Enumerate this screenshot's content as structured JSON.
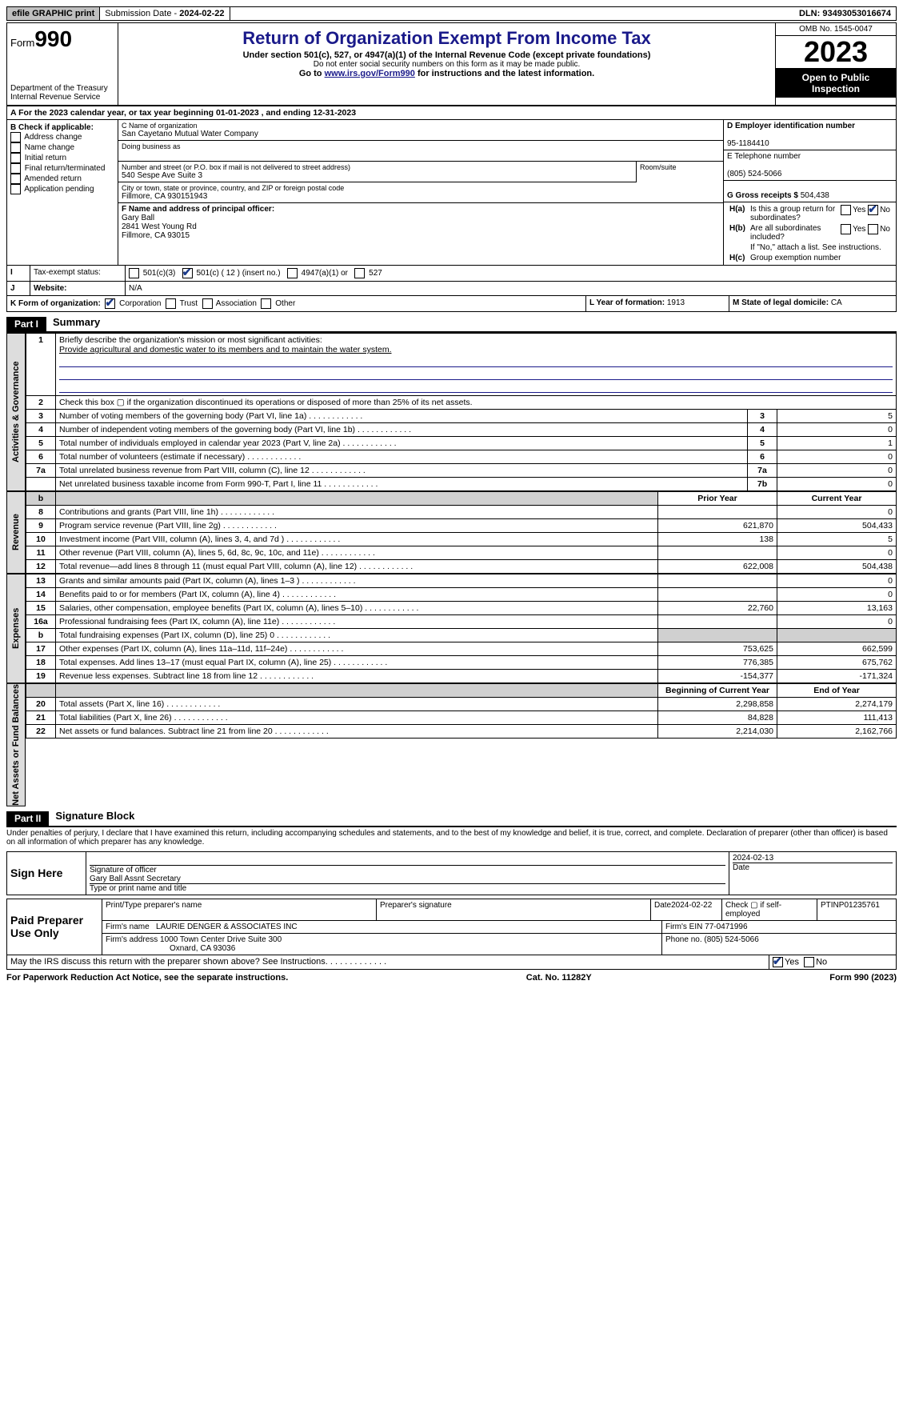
{
  "topbar": {
    "efile": "efile GRAPHIC print",
    "submission_label": "Submission Date - ",
    "submission_date": "2024-02-22",
    "dln_label": "DLN: ",
    "dln": "93493053016674"
  },
  "header": {
    "form_prefix": "Form",
    "form_number": "990",
    "dept": "Department of the Treasury\nInternal Revenue Service",
    "title": "Return of Organization Exempt From Income Tax",
    "line1": "Under section 501(c), 527, or 4947(a)(1) of the Internal Revenue Code (except private foundations)",
    "line2": "Do not enter social security numbers on this form as it may be made public.",
    "line3_pre": "Go to ",
    "line3_link": "www.irs.gov/Form990",
    "line3_post": " for instructions and the latest information.",
    "omb": "OMB No. 1545-0047",
    "year": "2023",
    "inspect": "Open to Public Inspection"
  },
  "sectionA": {
    "text_pre": "A For the 2023 calendar year, or tax year beginning ",
    "begin": "01-01-2023",
    "mid": "  , and ending ",
    "end": "12-31-2023"
  },
  "boxB": {
    "title": "B Check if applicable:",
    "items": [
      "Address change",
      "Name change",
      "Initial return",
      "Final return/terminated",
      "Amended return",
      "Application pending"
    ]
  },
  "boxC": {
    "name_label": "C Name of organization",
    "name": "San Cayetano Mutual Water Company",
    "dba_label": "Doing business as",
    "dba": "",
    "street_label": "Number and street (or P.O. box if mail is not delivered to street address)",
    "street": "540 Sespe Ave Suite 3",
    "room_label": "Room/suite",
    "city_label": "City or town, state or province, country, and ZIP or foreign postal code",
    "city": "Fillmore, CA  930151943",
    "officer_label": "F  Name and address of principal officer:",
    "officer_name": "Gary Ball",
    "officer_addr1": "2841 West Young Rd",
    "officer_addr2": "Fillmore, CA  93015"
  },
  "boxD": {
    "label": "D Employer identification number",
    "value": "95-1184410"
  },
  "boxE": {
    "label": "E Telephone number",
    "value": "(805) 524-5066"
  },
  "boxG": {
    "label": "G Gross receipts $ ",
    "value": "504,438"
  },
  "boxH": {
    "a": "Is this a group return for subordinates?",
    "a_yes": "Yes",
    "a_no": "No",
    "b": "Are all subordinates included?",
    "c_pre": "If \"No,\" attach a list. See instructions.",
    "c": "Group exemption number"
  },
  "rowI": {
    "label": "Tax-exempt status:",
    "opt1": "501(c)(3)",
    "opt2": "501(c) ( 12 ) (insert no.)",
    "opt3": "4947(a)(1) or",
    "opt4": "527"
  },
  "rowJ": {
    "label": "Website:",
    "value": "N/A"
  },
  "rowK": {
    "label": "K Form of organization:",
    "opts": [
      "Corporation",
      "Trust",
      "Association",
      "Other"
    ],
    "L": "L Year of formation: ",
    "L_val": "1913",
    "M": "M State of legal domicile: ",
    "M_val": "CA"
  },
  "part1": {
    "tag": "Part I",
    "title": "Summary"
  },
  "summary": {
    "q1": "Briefly describe the organization's mission or most significant activities:",
    "mission": "Provide agricultural and domestic water to its members and to maintain the water system.",
    "q2": "Check this box ▢ if the organization discontinued its operations or disposed of more than 25% of its net assets.",
    "gov_label": "Activities & Governance",
    "rev_label": "Revenue",
    "exp_label": "Expenses",
    "net_label": "Net Assets or Fund Balances",
    "lines": [
      {
        "n": "3",
        "t": "Number of voting members of the governing body (Part VI, line 1a)",
        "ln": "3",
        "v": "5"
      },
      {
        "n": "4",
        "t": "Number of independent voting members of the governing body (Part VI, line 1b)",
        "ln": "4",
        "v": "0"
      },
      {
        "n": "5",
        "t": "Total number of individuals employed in calendar year 2023 (Part V, line 2a)",
        "ln": "5",
        "v": "1"
      },
      {
        "n": "6",
        "t": "Total number of volunteers (estimate if necessary)",
        "ln": "6",
        "v": "0"
      },
      {
        "n": "7a",
        "t": "Total unrelated business revenue from Part VIII, column (C), line 12",
        "ln": "7a",
        "v": "0"
      },
      {
        "n": "",
        "t": "Net unrelated business taxable income from Form 990-T, Part I, line 11",
        "ln": "7b",
        "v": "0"
      }
    ],
    "col_prior": "Prior Year",
    "col_curr": "Current Year",
    "rev": [
      {
        "n": "8",
        "t": "Contributions and grants (Part VIII, line 1h)",
        "p": "",
        "c": "0"
      },
      {
        "n": "9",
        "t": "Program service revenue (Part VIII, line 2g)",
        "p": "621,870",
        "c": "504,433"
      },
      {
        "n": "10",
        "t": "Investment income (Part VIII, column (A), lines 3, 4, and 7d )",
        "p": "138",
        "c": "5"
      },
      {
        "n": "11",
        "t": "Other revenue (Part VIII, column (A), lines 5, 6d, 8c, 9c, 10c, and 11e)",
        "p": "",
        "c": "0"
      },
      {
        "n": "12",
        "t": "Total revenue—add lines 8 through 11 (must equal Part VIII, column (A), line 12)",
        "p": "622,008",
        "c": "504,438"
      }
    ],
    "exp": [
      {
        "n": "13",
        "t": "Grants and similar amounts paid (Part IX, column (A), lines 1–3 )",
        "p": "",
        "c": "0"
      },
      {
        "n": "14",
        "t": "Benefits paid to or for members (Part IX, column (A), line 4)",
        "p": "",
        "c": "0"
      },
      {
        "n": "15",
        "t": "Salaries, other compensation, employee benefits (Part IX, column (A), lines 5–10)",
        "p": "22,760",
        "c": "13,163"
      },
      {
        "n": "16a",
        "t": "Professional fundraising fees (Part IX, column (A), line 11e)",
        "p": "",
        "c": "0"
      },
      {
        "n": "b",
        "t": "Total fundraising expenses (Part IX, column (D), line 25) 0",
        "p": "shade",
        "c": "shade"
      },
      {
        "n": "17",
        "t": "Other expenses (Part IX, column (A), lines 11a–11d, 11f–24e)",
        "p": "753,625",
        "c": "662,599"
      },
      {
        "n": "18",
        "t": "Total expenses. Add lines 13–17 (must equal Part IX, column (A), line 25)",
        "p": "776,385",
        "c": "675,762"
      },
      {
        "n": "19",
        "t": "Revenue less expenses. Subtract line 18 from line 12",
        "p": "-154,377",
        "c": "-171,324"
      }
    ],
    "col_begin": "Beginning of Current Year",
    "col_end": "End of Year",
    "net": [
      {
        "n": "20",
        "t": "Total assets (Part X, line 16)",
        "p": "2,298,858",
        "c": "2,274,179"
      },
      {
        "n": "21",
        "t": "Total liabilities (Part X, line 26)",
        "p": "84,828",
        "c": "111,413"
      },
      {
        "n": "22",
        "t": "Net assets or fund balances. Subtract line 21 from line 20",
        "p": "2,214,030",
        "c": "2,162,766"
      }
    ]
  },
  "part2": {
    "tag": "Part II",
    "title": "Signature Block"
  },
  "perjury": "Under penalties of perjury, I declare that I have examined this return, including accompanying schedules and statements, and to the best of my knowledge and belief, it is true, correct, and complete. Declaration of preparer (other than officer) is based on all information of which preparer has any knowledge.",
  "sign": {
    "here": "Sign Here",
    "sig_label": "Signature of officer",
    "date_label": "Date",
    "date": "2024-02-13",
    "name": "Gary Ball  Assnt Secretary",
    "type_label": "Type or print name and title"
  },
  "paid": {
    "label": "Paid Preparer Use Only",
    "name_label": "Print/Type preparer's name",
    "sig_label": "Preparer's signature",
    "date_label": "Date",
    "date": "2024-02-22",
    "self": "Check ▢ if self-employed",
    "ptin_label": "PTIN",
    "ptin": "P01235761",
    "firm_label": "Firm's name  ",
    "firm": "LAURIE DENGER & ASSOCIATES INC",
    "ein_label": "Firm's EIN  ",
    "ein": "77-0471996",
    "addr_label": "Firm's address ",
    "addr1": "1000 Town Center Drive Suite 300",
    "addr2": "Oxnard, CA  93036",
    "phone_label": "Phone no. ",
    "phone": "(805) 524-5066"
  },
  "discuss": {
    "q": "May the IRS discuss this return with the preparer shown above? See Instructions.",
    "yes": "Yes",
    "no": "No"
  },
  "footer": {
    "left": "For Paperwork Reduction Act Notice, see the separate instructions.",
    "mid": "Cat. No. 11282Y",
    "right": "Form 990 (2023)"
  }
}
